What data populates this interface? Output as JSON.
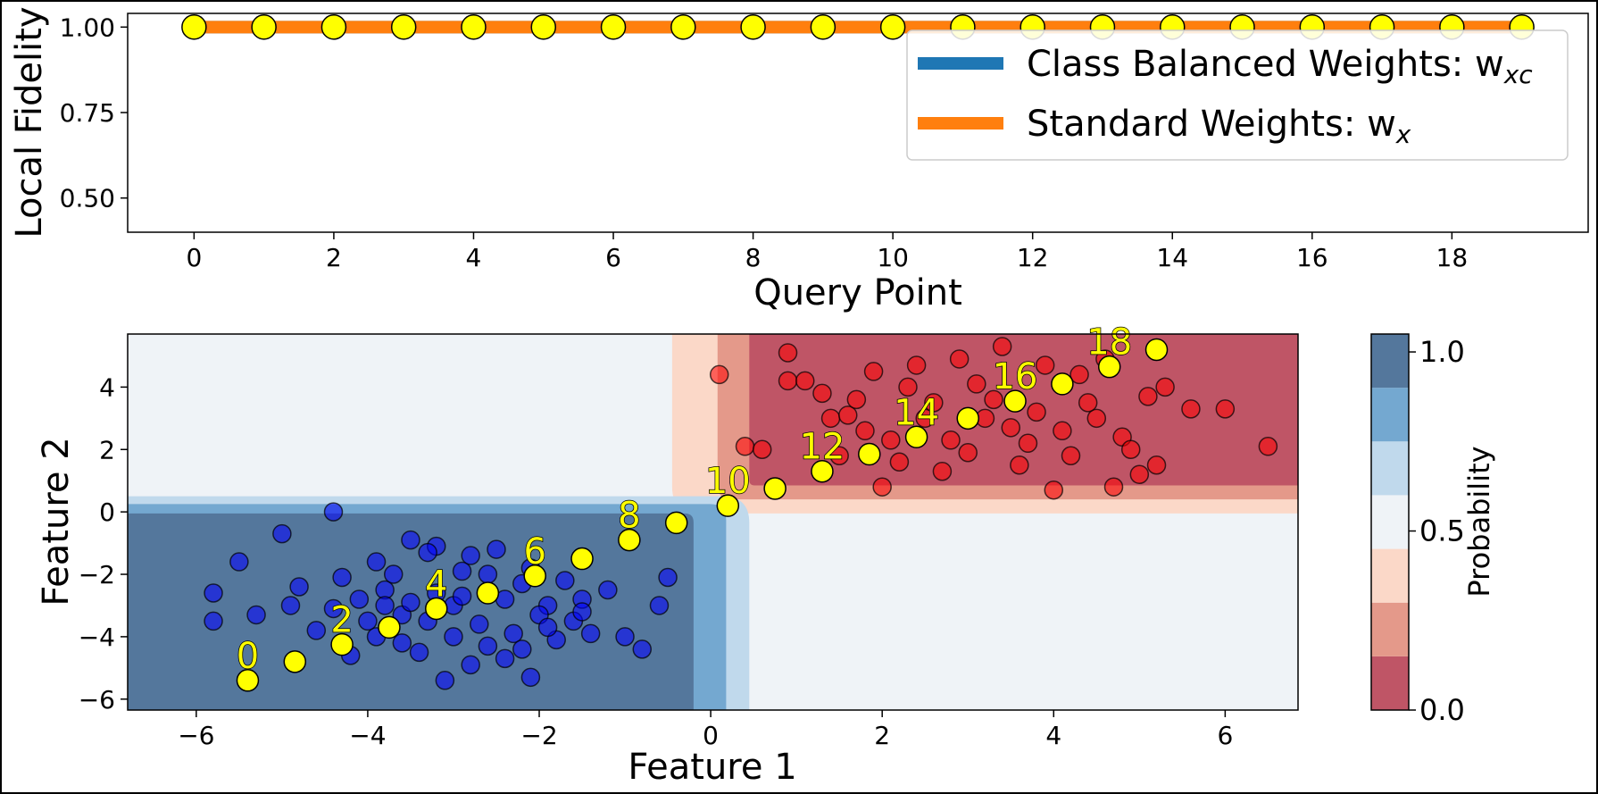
{
  "chart_data": [
    {
      "type": "line",
      "xlabel": "Query Point",
      "ylabel": "Local Fidelity",
      "xlim": [
        -0.95,
        19.95
      ],
      "ylim": [
        0.4,
        1.04
      ],
      "xticks": [
        0,
        2,
        4,
        6,
        8,
        10,
        12,
        14,
        16,
        18
      ],
      "yticks": [
        0.5,
        0.75,
        1.0
      ],
      "ytick_labels": [
        "0.50",
        "0.75",
        "1.00"
      ],
      "x": [
        0,
        1,
        2,
        3,
        4,
        5,
        6,
        7,
        8,
        9,
        10,
        11,
        12,
        13,
        14,
        15,
        16,
        17,
        18,
        19
      ],
      "series": [
        {
          "name": "Class Balanced Weights: w",
          "name_sub": "xc",
          "color": "#1f77b4",
          "values": [
            1,
            1,
            1,
            1,
            1,
            1,
            1,
            1,
            1,
            1,
            1,
            1,
            1,
            1,
            1,
            1,
            1,
            1,
            1,
            1
          ]
        },
        {
          "name": "Standard Weights: w",
          "name_sub": "x",
          "color": "#ff7f0e",
          "values": [
            1,
            1,
            1,
            1,
            1,
            1,
            1,
            1,
            1,
            1,
            1,
            1,
            1,
            1,
            1,
            1,
            1,
            1,
            1,
            1
          ]
        }
      ],
      "marker_color": "#ffff00",
      "legend_position": "top-right",
      "grid": false
    },
    {
      "type": "scatter",
      "xlabel": "Feature 1",
      "ylabel": "Feature 2",
      "xlim": [
        -6.8,
        6.85
      ],
      "ylim": [
        -6.35,
        5.7
      ],
      "xticks": [
        -6,
        -4,
        -2,
        0,
        2,
        4,
        6
      ],
      "xtick_labels": [
        "−6",
        "−4",
        "−2",
        "0",
        "2",
        "4",
        "6"
      ],
      "yticks": [
        -6,
        -4,
        -2,
        0,
        2,
        4
      ],
      "ytick_labels": [
        "−6",
        "−4",
        "−2",
        "0",
        "2",
        "4"
      ],
      "class_colors": {
        "class_1": "#0000ff",
        "class_0": "#ff0000"
      },
      "class_1_center": [
        -3.0,
        -3.0
      ],
      "class_0_center": [
        3.0,
        3.0
      ],
      "class_1_points": [
        [
          -4.4,
          0.0
        ],
        [
          -5.0,
          -0.7
        ],
        [
          -5.5,
          -1.6
        ],
        [
          -5.8,
          -2.6
        ],
        [
          -5.8,
          -3.5
        ],
        [
          -5.3,
          -3.3
        ],
        [
          -4.9,
          -3.0
        ],
        [
          -4.2,
          -4.6
        ],
        [
          -3.5,
          -0.9
        ],
        [
          -3.2,
          -1.1
        ],
        [
          -2.5,
          -1.2
        ],
        [
          -1.9,
          -3.0
        ],
        [
          -1.5,
          -2.8
        ],
        [
          -1.0,
          -4.0
        ],
        [
          -0.8,
          -4.4
        ],
        [
          -0.6,
          -3.0
        ],
        [
          -0.5,
          -2.1
        ],
        [
          -2.1,
          -5.3
        ],
        [
          -3.1,
          -5.4
        ],
        [
          -2.8,
          -4.9
        ],
        [
          -3.4,
          -4.5
        ],
        [
          -3.9,
          -4.0
        ],
        [
          -4.1,
          -2.8
        ],
        [
          -3.8,
          -2.5
        ],
        [
          -3.7,
          -2.0
        ],
        [
          -3.3,
          -3.5
        ],
        [
          -3.0,
          -3.0
        ],
        [
          -2.7,
          -3.6
        ],
        [
          -2.4,
          -2.8
        ],
        [
          -2.2,
          -2.3
        ],
        [
          -1.8,
          -4.1
        ],
        [
          -1.6,
          -3.5
        ],
        [
          -2.9,
          -1.9
        ],
        [
          -3.6,
          -3.3
        ],
        [
          -2.0,
          -3.3
        ],
        [
          -1.4,
          -3.9
        ],
        [
          -4.6,
          -3.8
        ],
        [
          -2.6,
          -4.3
        ],
        [
          -3.2,
          -2.6
        ],
        [
          -2.3,
          -3.9
        ],
        [
          -4.3,
          -2.1
        ],
        [
          -3.9,
          -1.6
        ],
        [
          -1.2,
          -2.5
        ],
        [
          -2.8,
          -1.4
        ],
        [
          -3.5,
          -2.9
        ],
        [
          -2.1,
          -1.8
        ],
        [
          -4.8,
          -2.4
        ],
        [
          -3.0,
          -4.0
        ],
        [
          -1.7,
          -2.2
        ],
        [
          -4.0,
          -3.5
        ],
        [
          -2.4,
          -4.7
        ],
        [
          -3.3,
          -1.3
        ],
        [
          -2.9,
          -2.7
        ],
        [
          -1.9,
          -3.7
        ],
        [
          -4.4,
          -3.1
        ],
        [
          -3.6,
          -4.2
        ],
        [
          -2.6,
          -2.0
        ],
        [
          -3.8,
          -3.0
        ],
        [
          -2.2,
          -4.4
        ],
        [
          -1.5,
          -3.2
        ]
      ],
      "class_0_points": [
        [
          0.1,
          4.4
        ],
        [
          0.4,
          2.1
        ],
        [
          0.6,
          2.0
        ],
        [
          0.9,
          5.1
        ],
        [
          0.9,
          4.2
        ],
        [
          1.1,
          4.2
        ],
        [
          1.3,
          3.8
        ],
        [
          1.4,
          3.0
        ],
        [
          1.6,
          3.1
        ],
        [
          1.9,
          4.5
        ],
        [
          2.0,
          0.8
        ],
        [
          2.3,
          4.0
        ],
        [
          3.4,
          5.3
        ],
        [
          4.0,
          0.7
        ],
        [
          4.7,
          0.8
        ],
        [
          5.0,
          1.2
        ],
        [
          5.2,
          1.5
        ],
        [
          5.3,
          4.0
        ],
        [
          5.6,
          3.3
        ],
        [
          6.0,
          3.3
        ],
        [
          6.5,
          2.1
        ],
        [
          2.5,
          3.0
        ],
        [
          2.8,
          2.3
        ],
        [
          3.1,
          4.1
        ],
        [
          3.3,
          3.6
        ],
        [
          3.5,
          2.7
        ],
        [
          3.8,
          3.2
        ],
        [
          4.1,
          2.6
        ],
        [
          4.3,
          4.4
        ],
        [
          4.5,
          3.0
        ],
        [
          4.8,
          2.4
        ],
        [
          5.1,
          3.7
        ],
        [
          2.2,
          1.6
        ],
        [
          2.7,
          1.3
        ],
        [
          3.0,
          1.9
        ],
        [
          3.6,
          1.5
        ],
        [
          4.2,
          1.8
        ],
        [
          1.8,
          2.6
        ],
        [
          1.5,
          1.8
        ],
        [
          2.4,
          4.7
        ],
        [
          2.9,
          4.9
        ],
        [
          3.9,
          4.7
        ],
        [
          4.6,
          4.9
        ],
        [
          4.9,
          2.0
        ],
        [
          3.2,
          3.0
        ],
        [
          2.6,
          3.5
        ],
        [
          1.7,
          3.6
        ],
        [
          2.1,
          2.3
        ],
        [
          3.7,
          2.2
        ],
        [
          4.4,
          3.5
        ]
      ],
      "query_points": [
        [
          -5.4,
          -5.4
        ],
        [
          -4.85,
          -4.8
        ],
        [
          -4.3,
          -4.25
        ],
        [
          -3.75,
          -3.7
        ],
        [
          -3.2,
          -3.1
        ],
        [
          -2.6,
          -2.6
        ],
        [
          -2.05,
          -2.05
        ],
        [
          -1.5,
          -1.5
        ],
        [
          -0.95,
          -0.9
        ],
        [
          -0.4,
          -0.35
        ],
        [
          0.2,
          0.2
        ],
        [
          0.75,
          0.75
        ],
        [
          1.3,
          1.3
        ],
        [
          1.85,
          1.85
        ],
        [
          2.4,
          2.4
        ],
        [
          3.0,
          3.0
        ],
        [
          3.55,
          3.55
        ],
        [
          4.1,
          4.1
        ],
        [
          4.65,
          4.65
        ],
        [
          5.2,
          5.2
        ]
      ],
      "query_labels": [
        {
          "text": "0",
          "index": 0
        },
        {
          "text": "2",
          "index": 2
        },
        {
          "text": "4",
          "index": 4
        },
        {
          "text": "6",
          "index": 6
        },
        {
          "text": "8",
          "index": 8
        },
        {
          "text": "10",
          "index": 10
        },
        {
          "text": "12",
          "index": 12
        },
        {
          "text": "14",
          "index": 14
        },
        {
          "text": "16",
          "index": 16
        },
        {
          "text": "18",
          "index": 18
        }
      ],
      "query_marker_color": "#ffff00"
    }
  ],
  "colorbar": {
    "label": "Probability",
    "tick_labels": [
      "0.0",
      "0.5",
      "1.0"
    ],
    "ticks": [
      0.0,
      0.5,
      1.0
    ],
    "range": [
      0.0,
      1.05
    ],
    "bands": [
      "#bf5566",
      "#e4998a",
      "#fbd8c8",
      "#eff3f7",
      "#c0d9ec",
      "#74a8d0",
      "#54779c"
    ]
  }
}
